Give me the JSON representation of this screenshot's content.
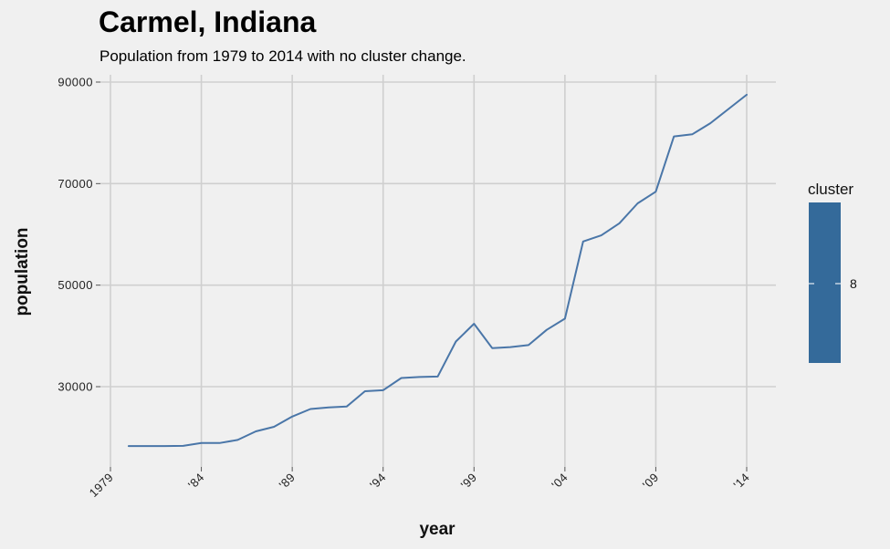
{
  "chart_data": {
    "type": "line",
    "title": "Carmel, Indiana",
    "subtitle": "Population from 1979 to 2014 with no cluster change.",
    "xlabel": "year",
    "ylabel": "population",
    "x_tick_labels": [
      "1979",
      "'84",
      "'89",
      "'94",
      "'99",
      "'04",
      "'09",
      "'14"
    ],
    "x_ticks": [
      1979,
      1984,
      1989,
      1994,
      1999,
      2004,
      2009,
      2014
    ],
    "y_ticks": [
      30000,
      50000,
      70000,
      90000
    ],
    "y_tick_labels": [
      "30000",
      "50000",
      "70000",
      "90000"
    ],
    "xlim": [
      1979,
      2014
    ],
    "ylim": [
      18000,
      90000
    ],
    "grid": true,
    "legend": {
      "title": "cluster",
      "label": "8",
      "placement": "right"
    },
    "series": [
      {
        "color": "#4a76a8",
        "x": [
          1980,
          1981,
          1982,
          1983,
          1984,
          1985,
          1986,
          1987,
          1988,
          1989,
          1990,
          1991,
          1992,
          1993,
          1994,
          1995,
          1996,
          1997,
          1998,
          1999,
          2000,
          2001,
          2002,
          2003,
          2004,
          2005,
          2006,
          2007,
          2008,
          2009,
          2010,
          2011,
          2012,
          2013,
          2014
        ],
        "values": [
          18300,
          18300,
          18300,
          18350,
          18900,
          18900,
          19500,
          21200,
          22100,
          24100,
          25600,
          25900,
          26100,
          29100,
          29300,
          31700,
          31900,
          32000,
          38900,
          42400,
          37600,
          37800,
          38200,
          41200,
          43400,
          58600,
          59800,
          62200,
          66100,
          68400,
          79300,
          79700,
          81900,
          84700,
          87500
        ]
      }
    ]
  },
  "colors": {
    "background": "#f0f0f0",
    "grid": "#cfcfcf",
    "line": "#4a76a8",
    "legend_bar": "#346a9a"
  }
}
